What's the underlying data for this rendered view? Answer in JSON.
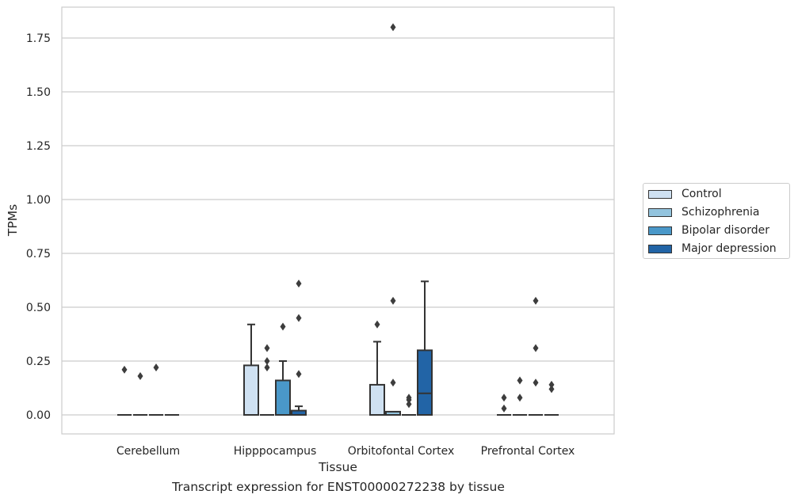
{
  "chart_data": {
    "type": "box",
    "title": "Transcript expression for ENST00000272238 by tissue",
    "xlabel": "Tissue",
    "ylabel": "TPMs",
    "ylim": [
      -0.09,
      1.89
    ],
    "yticks": [
      "0.00",
      "0.25",
      "0.50",
      "0.75",
      "1.00",
      "1.25",
      "1.50",
      "1.75"
    ],
    "grid": true,
    "legend_position": "right",
    "categories": [
      "Cerebellum",
      "Hipppocampus",
      "Orbitofontal Cortex",
      "Prefrontal Cortex"
    ],
    "series": [
      {
        "name": "Control",
        "color": "#cfe1f2",
        "boxes": [
          {
            "q1": 0,
            "median": 0,
            "q3": 0,
            "whisker_low": 0,
            "whisker_high": 0,
            "outliers": [
              0.21
            ]
          },
          {
            "q1": 0,
            "median": 0,
            "q3": 0.23,
            "whisker_low": 0,
            "whisker_high": 0.42,
            "outliers": []
          },
          {
            "q1": 0,
            "median": 0,
            "q3": 0.14,
            "whisker_low": 0,
            "whisker_high": 0.34,
            "outliers": [
              0.42
            ]
          },
          {
            "q1": 0,
            "median": 0,
            "q3": 0,
            "whisker_low": 0,
            "whisker_high": 0,
            "outliers": [
              0.03,
              0.08
            ]
          }
        ]
      },
      {
        "name": "Schizophrenia",
        "color": "#93c4de",
        "boxes": [
          {
            "q1": 0,
            "median": 0,
            "q3": 0,
            "whisker_low": 0,
            "whisker_high": 0,
            "outliers": [
              0.18
            ]
          },
          {
            "q1": 0,
            "median": 0,
            "q3": 0,
            "whisker_low": 0,
            "whisker_high": 0,
            "outliers": [
              0.22,
              0.25,
              0.31
            ]
          },
          {
            "q1": 0,
            "median": 0,
            "q3": 0.015,
            "whisker_low": 0,
            "whisker_high": 0.015,
            "outliers": [
              0.15,
              0.53,
              1.8
            ]
          },
          {
            "q1": 0,
            "median": 0,
            "q3": 0,
            "whisker_low": 0,
            "whisker_high": 0,
            "outliers": [
              0.08,
              0.16
            ]
          }
        ]
      },
      {
        "name": "Bipolar disorder",
        "color": "#4a98c9",
        "boxes": [
          {
            "q1": 0,
            "median": 0,
            "q3": 0,
            "whisker_low": 0,
            "whisker_high": 0,
            "outliers": [
              0.22
            ]
          },
          {
            "q1": 0,
            "median": 0,
            "q3": 0.16,
            "whisker_low": 0,
            "whisker_high": 0.25,
            "outliers": [
              0.41
            ]
          },
          {
            "q1": 0,
            "median": 0,
            "q3": 0,
            "whisker_low": 0,
            "whisker_high": 0,
            "outliers": [
              0.05,
              0.07,
              0.08
            ]
          },
          {
            "q1": 0,
            "median": 0,
            "q3": 0,
            "whisker_low": 0,
            "whisker_high": 0,
            "outliers": [
              0.15,
              0.31,
              0.53
            ]
          }
        ]
      },
      {
        "name": "Major depression",
        "color": "#2264a6",
        "boxes": [
          {
            "q1": 0,
            "median": 0,
            "q3": 0,
            "whisker_low": 0,
            "whisker_high": 0,
            "outliers": []
          },
          {
            "q1": 0,
            "median": 0,
            "q3": 0.02,
            "whisker_low": 0,
            "whisker_high": 0.04,
            "outliers": [
              0.19,
              0.45,
              0.61
            ]
          },
          {
            "q1": 0,
            "median": 0.1,
            "q3": 0.3,
            "whisker_low": 0,
            "whisker_high": 0.62,
            "outliers": []
          },
          {
            "q1": 0,
            "median": 0,
            "q3": 0,
            "whisker_low": 0,
            "whisker_high": 0,
            "outliers": [
              0.12,
              0.14
            ]
          }
        ]
      }
    ]
  }
}
